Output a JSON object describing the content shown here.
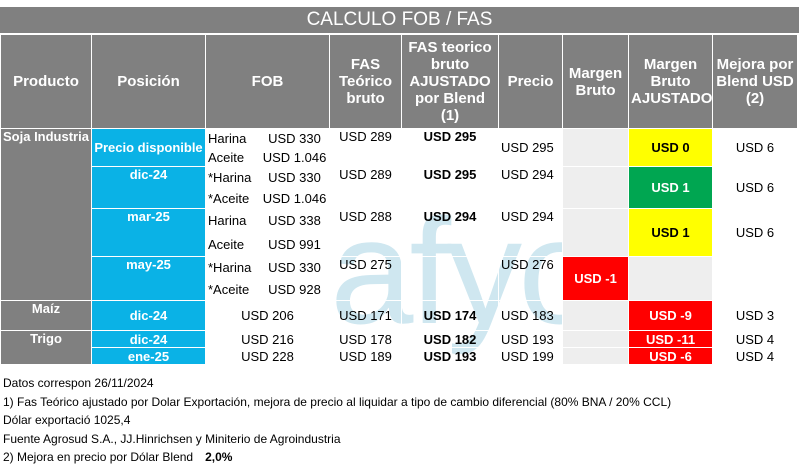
{
  "title": "CALCULO FOB / FAS",
  "headers": {
    "producto": "Producto",
    "posicion": "Posición",
    "fob": "FOB",
    "fas_teorico": "FAS Teórico bruto",
    "fas_ajustado": "FAS teorico bruto AJUSTADO por Blend (1)",
    "precio": "Precio",
    "margen_bruto": "Margen Bruto",
    "margen_ajustado": "Margen Bruto AJUSTADO",
    "mejora": "Mejora por Blend USD (2)"
  },
  "rows": {
    "soja": "Soja Industria",
    "s1": {
      "pos": "Precio disponible",
      "p1": "Harina",
      "v1": "USD 330",
      "p2": "Aceite",
      "v2": "USD 1.046",
      "fas": "USD 289",
      "aj": "USD 295",
      "precio": "USD 295",
      "margen": "",
      "margen_aj": "USD 0",
      "mejora": "USD 6"
    },
    "s2": {
      "pos": "dic-24",
      "p1": "*Harina",
      "v1": "USD 330",
      "p2": "*Aceite",
      "v2": "USD 1.046",
      "fas": "USD 289",
      "aj": "USD 295",
      "precio": "USD 294",
      "margen": "",
      "margen_aj": "USD 1",
      "mejora": "USD 6"
    },
    "s3": {
      "pos": "mar-25",
      "p1": "Harina",
      "v1": "USD 338",
      "p2": "Aceite",
      "v2": "USD 991",
      "fas": "USD 288",
      "aj": "USD 294",
      "precio": "USD 294",
      "margen": "",
      "margen_aj": "USD 1",
      "mejora": "USD 6"
    },
    "s4": {
      "pos": "may-25",
      "p1": "*Harina",
      "v1": "USD 330",
      "p2": "*Aceite",
      "v2": "USD 928",
      "fas": "USD 275",
      "aj": "",
      "precio": "USD 276",
      "margen": "USD -1",
      "margen_aj": "",
      "mejora": ""
    },
    "maiz": "Maíz",
    "m1": {
      "pos": "dic-24",
      "fob": "USD 206",
      "fas": "USD 171",
      "aj": "USD 174",
      "precio": "USD 183",
      "margen_aj": "USD -9",
      "mejora": "USD 3"
    },
    "trigo": "Trigo",
    "t1": {
      "pos": "dic-24",
      "fob": "USD 216",
      "fas": "USD 178",
      "aj": "USD 182",
      "precio": "USD 193",
      "margen_aj": "USD -11",
      "mejora": "USD 4"
    },
    "t2": {
      "pos": "ene-25",
      "fob": "USD 228",
      "fas": "USD 189",
      "aj": "USD 193",
      "precio": "USD 199",
      "margen_aj": "USD -6",
      "mejora": "USD 4"
    }
  },
  "watermark": "afyo",
  "notes": {
    "datos": "Datos correspon",
    "datos_date": "26/11/2024",
    "n1": "1) Fas Teórico ajustado por Dolar Exportación, mejora de precio al liquidar a tipo de cambio diferencial (80% BNA / 20% CCL)",
    "n2": "Dólar exportació 1025,4",
    "n3": "Fuente Agrosud S.A., JJ.Hinrichsen y Miniterio de Agroindustria",
    "n4": "2) Mejora en precio por Dólar Blend",
    "n4_val": "2,0%"
  },
  "colors": {
    "header": "#808080",
    "position": "#0ab2e6",
    "yellow": "#ffff00",
    "green": "#00a651",
    "red": "#ff0000"
  }
}
